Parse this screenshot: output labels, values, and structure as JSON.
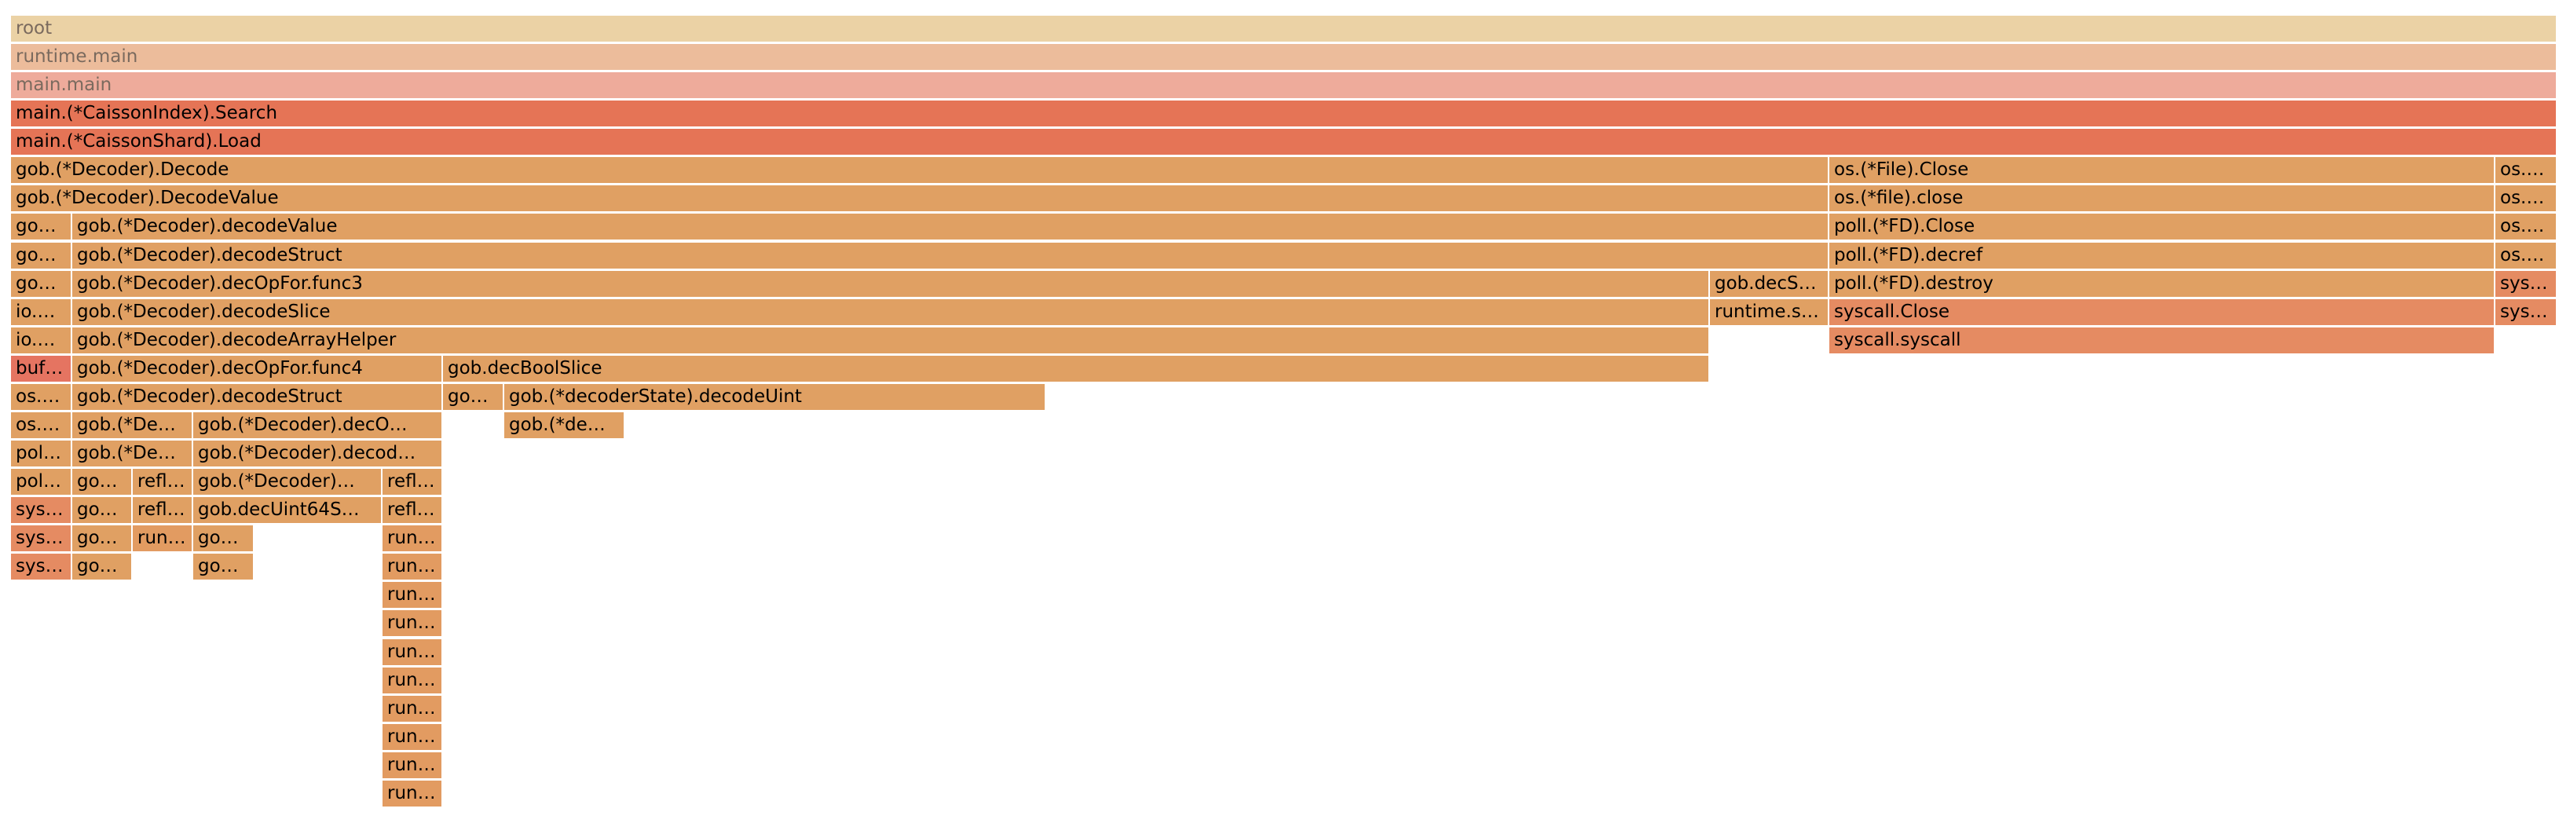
{
  "colors": {
    "root": "#ebd2a5",
    "runtime_main": "#ecbc9b",
    "main_main": "#eeab9b",
    "hot": "#e57456",
    "warm": "#e0a063",
    "orange": "#e29b61",
    "red_orange": "#e58b62",
    "buf_red": "#e57461"
  },
  "flamegraph": {
    "frames": [
      {
        "name": "root",
        "label": "root",
        "depth": 0,
        "start": 0,
        "end": 3242,
        "color": "root",
        "faded": true
      },
      {
        "name": "runtime.main",
        "label": "runtime.main",
        "depth": 1,
        "start": 0,
        "end": 3242,
        "color": "runtime_main",
        "faded": true
      },
      {
        "name": "main.main",
        "label": "main.main",
        "depth": 2,
        "start": 0,
        "end": 3242,
        "color": "main_main",
        "faded": true
      },
      {
        "name": "main.(*CaissonIndex).Search",
        "label": "main.(*CaissonIndex).Search",
        "depth": 3,
        "start": 0,
        "end": 3242,
        "color": "hot"
      },
      {
        "name": "main.(*CaissonShard).Load",
        "label": "main.(*CaissonShard).Load",
        "depth": 4,
        "start": 0,
        "end": 3242,
        "color": "hot"
      },
      {
        "name": "gob.(*Decoder).Decode",
        "label": "gob.(*Decoder).Decode",
        "depth": 5,
        "start": 0,
        "end": 2315,
        "color": "warm"
      },
      {
        "name": "os.(*File).Close",
        "label": "os.(*File).Close",
        "depth": 5,
        "start": 2315,
        "end": 3163,
        "color": "warm"
      },
      {
        "name": "os.(*file).close (1)",
        "label": "os.…",
        "depth": 5,
        "start": 3163,
        "end": 3242,
        "color": "warm"
      },
      {
        "name": "gob.(*Decoder).DecodeValue",
        "label": "gob.(*Decoder).DecodeValue",
        "depth": 6,
        "start": 0,
        "end": 2315,
        "color": "warm"
      },
      {
        "name": "os.(*file).close",
        "label": "os.(*file).close",
        "depth": 6,
        "start": 2315,
        "end": 3163,
        "color": "warm"
      },
      {
        "name": "os (depth 6)",
        "label": "os.…",
        "depth": 6,
        "start": 3163,
        "end": 3242,
        "color": "warm"
      },
      {
        "name": "go (depth 7)",
        "label": "go…",
        "depth": 7,
        "start": 0,
        "end": 78,
        "color": "warm"
      },
      {
        "name": "gob.(*Decoder).decodeValue",
        "label": "gob.(*Decoder).decodeValue",
        "depth": 7,
        "start": 78,
        "end": 2315,
        "color": "warm"
      },
      {
        "name": "poll.(*FD).Close",
        "label": "poll.(*FD).Close",
        "depth": 7,
        "start": 2315,
        "end": 3163,
        "color": "warm"
      },
      {
        "name": "os (depth 7)",
        "label": "os.…",
        "depth": 7,
        "start": 3163,
        "end": 3242,
        "color": "warm"
      },
      {
        "name": "go (depth 8)",
        "label": "go…",
        "depth": 8,
        "start": 0,
        "end": 78,
        "color": "warm"
      },
      {
        "name": "gob.(*Decoder).decodeStruct (top)",
        "label": "gob.(*Decoder).decodeStruct",
        "depth": 8,
        "start": 78,
        "end": 2315,
        "color": "warm"
      },
      {
        "name": "poll.(*FD).decref",
        "label": "poll.(*FD).decref",
        "depth": 8,
        "start": 2315,
        "end": 3163,
        "color": "warm"
      },
      {
        "name": "os (depth 8)",
        "label": "os.…",
        "depth": 8,
        "start": 3163,
        "end": 3242,
        "color": "warm"
      },
      {
        "name": "go (depth 9)",
        "label": "go…",
        "depth": 9,
        "start": 0,
        "end": 78,
        "color": "warm"
      },
      {
        "name": "gob.(*Decoder).decOpFor.func3",
        "label": "gob.(*Decoder).decOpFor.func3",
        "depth": 9,
        "start": 78,
        "end": 2163,
        "color": "warm"
      },
      {
        "name": "gob.decS",
        "label": "gob.decS…",
        "depth": 9,
        "start": 2163,
        "end": 2315,
        "color": "warm"
      },
      {
        "name": "poll.(*FD).destroy",
        "label": "poll.(*FD).destroy",
        "depth": 9,
        "start": 2315,
        "end": 3163,
        "color": "warm"
      },
      {
        "name": "sys (depth 9)",
        "label": "sys…",
        "depth": 9,
        "start": 3163,
        "end": 3242,
        "color": "red_orange"
      },
      {
        "name": "io (depth 10)",
        "label": "io.…",
        "depth": 10,
        "start": 0,
        "end": 78,
        "color": "warm"
      },
      {
        "name": "gob.(*Decoder).decodeSlice",
        "label": "gob.(*Decoder).decodeSlice",
        "depth": 10,
        "start": 78,
        "end": 2163,
        "color": "warm"
      },
      {
        "name": "runtime.s",
        "label": "runtime.s…",
        "depth": 10,
        "start": 2163,
        "end": 2315,
        "color": "warm"
      },
      {
        "name": "syscall.Close",
        "label": "syscall.Close",
        "depth": 10,
        "start": 2315,
        "end": 3163,
        "color": "red_orange"
      },
      {
        "name": "sys (depth 10)",
        "label": "sys…",
        "depth": 10,
        "start": 3163,
        "end": 3242,
        "color": "red_orange"
      },
      {
        "name": "io (depth 11)",
        "label": "io.…",
        "depth": 11,
        "start": 0,
        "end": 78,
        "color": "warm"
      },
      {
        "name": "gob.(*Decoder).decodeArrayHelper",
        "label": "gob.(*Decoder).decodeArrayHelper",
        "depth": 11,
        "start": 78,
        "end": 2163,
        "color": "warm"
      },
      {
        "name": "syscall.syscall",
        "label": "syscall.syscall",
        "depth": 11,
        "start": 2315,
        "end": 3163,
        "color": "red_orange"
      },
      {
        "name": "buf (depth 12)",
        "label": "buf…",
        "depth": 12,
        "start": 0,
        "end": 78,
        "color": "buf_red"
      },
      {
        "name": "gob.(*Decoder).decOpFor.func4",
        "label": "gob.(*Decoder).decOpFor.func4",
        "depth": 12,
        "start": 78,
        "end": 550,
        "color": "warm"
      },
      {
        "name": "gob.decBoolSlice",
        "label": "gob.decBoolSlice",
        "depth": 12,
        "start": 550,
        "end": 2163,
        "color": "warm"
      },
      {
        "name": "os (depth 13)",
        "label": "os.…",
        "depth": 13,
        "start": 0,
        "end": 78,
        "color": "warm"
      },
      {
        "name": "gob.(*Decoder).decodeStruct (inner)",
        "label": "gob.(*Decoder).decodeStruct",
        "depth": 13,
        "start": 78,
        "end": 550,
        "color": "warm"
      },
      {
        "name": "go (depth 13)",
        "label": "go…",
        "depth": 13,
        "start": 550,
        "end": 628,
        "color": "warm"
      },
      {
        "name": "gob.(*decoderState).decodeUint",
        "label": "gob.(*decoderState).decodeUint",
        "depth": 13,
        "start": 628,
        "end": 1318,
        "color": "warm"
      },
      {
        "name": "os (depth 14)",
        "label": "os.…",
        "depth": 14,
        "start": 0,
        "end": 78,
        "color": "warm"
      },
      {
        "name": "gob.(*De (depth 14)",
        "label": "gob.(*De…",
        "depth": 14,
        "start": 78,
        "end": 232,
        "color": "warm"
      },
      {
        "name": "gob.(*Decoder).decO",
        "label": "gob.(*Decoder).decO…",
        "depth": 14,
        "start": 232,
        "end": 550,
        "color": "warm"
      },
      {
        "name": "gob.(*de",
        "label": "gob.(*de…",
        "depth": 14,
        "start": 628,
        "end": 782,
        "color": "warm"
      },
      {
        "name": "pol (depth 15)",
        "label": "pol…",
        "depth": 15,
        "start": 0,
        "end": 78,
        "color": "warm"
      },
      {
        "name": "gob.(*De (depth 15)",
        "label": "gob.(*De…",
        "depth": 15,
        "start": 78,
        "end": 232,
        "color": "warm"
      },
      {
        "name": "gob.(*Decoder).decod",
        "label": "gob.(*Decoder).decod…",
        "depth": 15,
        "start": 232,
        "end": 550,
        "color": "warm"
      },
      {
        "name": "pol (depth 16)",
        "label": "pol…",
        "depth": 16,
        "start": 0,
        "end": 78,
        "color": "warm"
      },
      {
        "name": "go (depth 16)",
        "label": "go…",
        "depth": 16,
        "start": 78,
        "end": 155,
        "color": "warm"
      },
      {
        "name": "refl (depth 16a)",
        "label": "refl…",
        "depth": 16,
        "start": 155,
        "end": 232,
        "color": "warm"
      },
      {
        "name": "gob.(*Decoder)",
        "label": "gob.(*Decoder)…",
        "depth": 16,
        "start": 232,
        "end": 473,
        "color": "warm"
      },
      {
        "name": "refl (depth 16b)",
        "label": "refl…",
        "depth": 16,
        "start": 473,
        "end": 550,
        "color": "warm"
      },
      {
        "name": "sys (depth 17)",
        "label": "sys…",
        "depth": 17,
        "start": 0,
        "end": 78,
        "color": "red_orange"
      },
      {
        "name": "go (depth 17)",
        "label": "go…",
        "depth": 17,
        "start": 78,
        "end": 155,
        "color": "warm"
      },
      {
        "name": "refl (depth 17a)",
        "label": "refl…",
        "depth": 17,
        "start": 155,
        "end": 232,
        "color": "warm"
      },
      {
        "name": "gob.decUint64S",
        "label": "gob.decUint64S…",
        "depth": 17,
        "start": 232,
        "end": 473,
        "color": "warm"
      },
      {
        "name": "refl (depth 17b)",
        "label": "refl…",
        "depth": 17,
        "start": 473,
        "end": 550,
        "color": "warm"
      },
      {
        "name": "sys (depth 18)",
        "label": "sys…",
        "depth": 18,
        "start": 0,
        "end": 78,
        "color": "red_orange"
      },
      {
        "name": "go (depth 18)",
        "label": "go…",
        "depth": 18,
        "start": 78,
        "end": 155,
        "color": "warm"
      },
      {
        "name": "run (depth 18a)",
        "label": "run…",
        "depth": 18,
        "start": 155,
        "end": 232,
        "color": "orange"
      },
      {
        "name": "go (depth 18b)",
        "label": "go…",
        "depth": 18,
        "start": 232,
        "end": 310,
        "color": "warm"
      },
      {
        "name": "run (depth 18b)",
        "label": "run…",
        "depth": 18,
        "start": 473,
        "end": 550,
        "color": "orange"
      },
      {
        "name": "sys (depth 19)",
        "label": "sys…",
        "depth": 19,
        "start": 0,
        "end": 78,
        "color": "red_orange"
      },
      {
        "name": "go (depth 19)",
        "label": "go…",
        "depth": 19,
        "start": 78,
        "end": 155,
        "color": "warm"
      },
      {
        "name": "go (depth 19b)",
        "label": "go…",
        "depth": 19,
        "start": 232,
        "end": 310,
        "color": "warm"
      },
      {
        "name": "run (depth 19)",
        "label": "run…",
        "depth": 19,
        "start": 473,
        "end": 550,
        "color": "orange"
      },
      {
        "name": "run (depth 20)",
        "label": "run…",
        "depth": 20,
        "start": 473,
        "end": 550,
        "color": "orange"
      },
      {
        "name": "run (depth 21)",
        "label": "run…",
        "depth": 21,
        "start": 473,
        "end": 550,
        "color": "orange"
      },
      {
        "name": "run (depth 22)",
        "label": "run…",
        "depth": 22,
        "start": 473,
        "end": 550,
        "color": "orange"
      },
      {
        "name": "run (depth 23)",
        "label": "run…",
        "depth": 23,
        "start": 473,
        "end": 550,
        "color": "orange"
      },
      {
        "name": "run (depth 24)",
        "label": "run…",
        "depth": 24,
        "start": 473,
        "end": 550,
        "color": "orange"
      },
      {
        "name": "run (depth 25)",
        "label": "run…",
        "depth": 25,
        "start": 473,
        "end": 550,
        "color": "orange"
      },
      {
        "name": "run (depth 26)",
        "label": "run…",
        "depth": 26,
        "start": 473,
        "end": 550,
        "color": "orange"
      },
      {
        "name": "run (depth 27)",
        "label": "run…",
        "depth": 27,
        "start": 473,
        "end": 550,
        "color": "orange"
      }
    ]
  }
}
